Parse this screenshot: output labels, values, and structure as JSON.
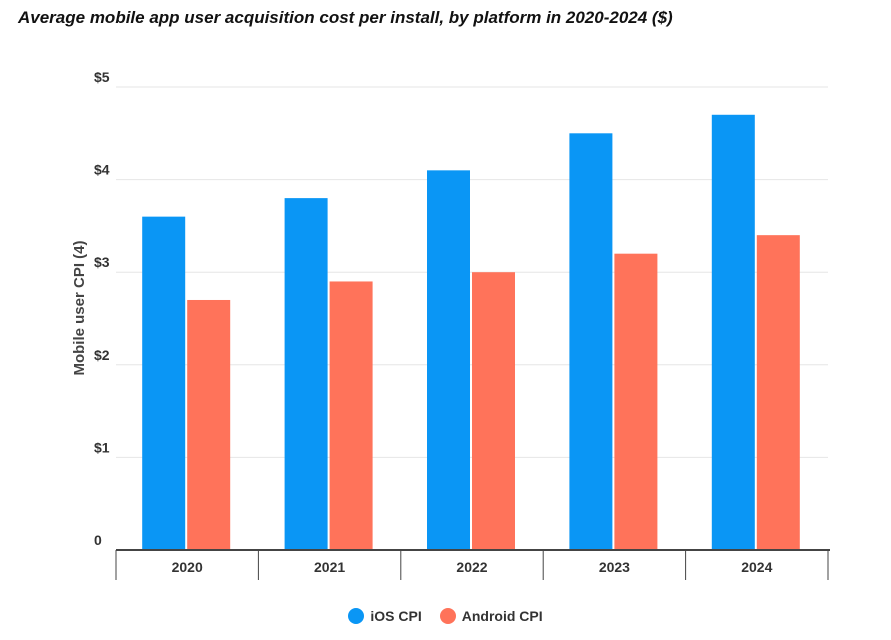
{
  "chart_data": {
    "type": "bar",
    "title": "Average mobile app user acquisition cost per install, by platform in 2020-2024 ($)",
    "xlabel": "",
    "ylabel": "Mobile user CPI (4)",
    "categories": [
      "2020",
      "2021",
      "2022",
      "2023",
      "2024"
    ],
    "series": [
      {
        "name": "iOS CPI",
        "color": "#0a96f5",
        "values": [
          3.6,
          3.8,
          4.1,
          4.5,
          4.7
        ]
      },
      {
        "name": "Android CPI",
        "color": "#ff735a",
        "values": [
          2.7,
          2.9,
          3.0,
          3.2,
          3.4
        ]
      }
    ],
    "ylim": [
      0,
      5
    ],
    "yticks": [
      {
        "value": 0,
        "label": "0"
      },
      {
        "value": 1,
        "label": "$1"
      },
      {
        "value": 2,
        "label": "$2"
      },
      {
        "value": 3,
        "label": "$3"
      },
      {
        "value": 4,
        "label": "$4"
      },
      {
        "value": 5,
        "label": "$5"
      }
    ],
    "grid": true,
    "legend_position": "bottom-center"
  }
}
